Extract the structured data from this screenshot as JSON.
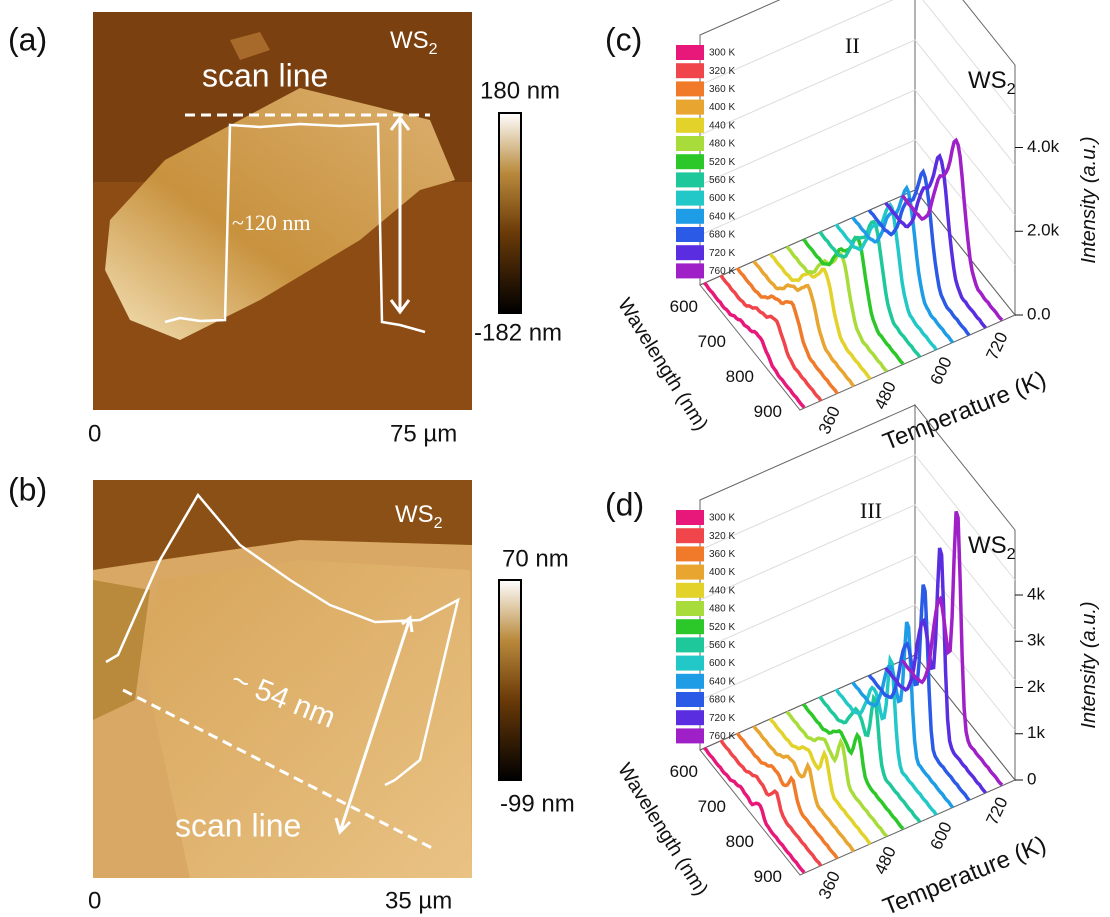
{
  "panels": [
    {
      "label": "(a)",
      "material": "WS",
      "material_sub": "2",
      "scan_label": "scan line",
      "step_label": "~120 nm",
      "colorbar_max": "180 nm",
      "colorbar_min": "-182 nm",
      "x_start": "0",
      "x_end": "75 µm"
    },
    {
      "label": "(b)",
      "material": "WS",
      "material_sub": "2",
      "scan_label": "scan line",
      "step_label": "~ 54 nm",
      "colorbar_max": "70 nm",
      "colorbar_min": "-99 nm",
      "x_start": "0",
      "x_end": "35 µm"
    },
    {
      "label": "(c)",
      "region": "II",
      "material": "WS",
      "material_sub": "2",
      "legend": [
        {
          "name": "300 K",
          "color": "#e8187a"
        },
        {
          "name": "320 K",
          "color": "#f0454a"
        },
        {
          "name": "360 K",
          "color": "#f07a2a"
        },
        {
          "name": "400 K",
          "color": "#e8a530"
        },
        {
          "name": "440 K",
          "color": "#e2d22a"
        },
        {
          "name": "480 K",
          "color": "#a8dc3a"
        },
        {
          "name": "520 K",
          "color": "#2cc82a"
        },
        {
          "name": "560 K",
          "color": "#1ec89a"
        },
        {
          "name": "600 K",
          "color": "#22c8c8"
        },
        {
          "name": "640 K",
          "color": "#1e9ce6"
        },
        {
          "name": "680 K",
          "color": "#2a5ae6"
        },
        {
          "name": "720 K",
          "color": "#5a2ee0"
        },
        {
          "name": "760 K",
          "color": "#a020c8"
        }
      ],
      "z_axis_label": "Intensity",
      "z_axis_unit": "(a.u.)",
      "z_ticks": [
        "0.0",
        "2.0k",
        "4.0k"
      ],
      "y_axis_label": "Wavelength (nm)",
      "y_ticks": [
        "600",
        "700",
        "800",
        "900"
      ],
      "x_axis_label": "Temperature (K)",
      "x_ticks": [
        "360",
        "480",
        "600",
        "720"
      ]
    },
    {
      "label": "(d)",
      "region": "III",
      "material": "WS",
      "material_sub": "2",
      "legend": [
        {
          "name": "300 K",
          "color": "#e8187a"
        },
        {
          "name": "320 K",
          "color": "#f0454a"
        },
        {
          "name": "360 K",
          "color": "#f07a2a"
        },
        {
          "name": "400 K",
          "color": "#e8a530"
        },
        {
          "name": "440 K",
          "color": "#e2d22a"
        },
        {
          "name": "480 K",
          "color": "#a8dc3a"
        },
        {
          "name": "520 K",
          "color": "#2cc82a"
        },
        {
          "name": "560 K",
          "color": "#1ec89a"
        },
        {
          "name": "600 K",
          "color": "#22c8c8"
        },
        {
          "name": "640 K",
          "color": "#1e9ce6"
        },
        {
          "name": "680 K",
          "color": "#2a5ae6"
        },
        {
          "name": "720 K",
          "color": "#5a2ee0"
        },
        {
          "name": "760 K",
          "color": "#a020c8"
        }
      ],
      "z_axis_label": "Intensity",
      "z_axis_unit": "(a.u.)",
      "z_ticks": [
        "0",
        "1k",
        "2k",
        "3k",
        "4k"
      ],
      "y_axis_label": "Wavelength (nm)",
      "y_ticks": [
        "600",
        "700",
        "800",
        "900"
      ],
      "x_axis_label": "Temperature (K)",
      "x_ticks": [
        "360",
        "480",
        "600",
        "720"
      ]
    }
  ]
}
